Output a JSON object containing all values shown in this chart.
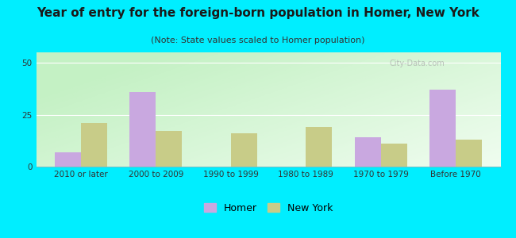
{
  "title": "Year of entry for the foreign-born population in Homer, New York",
  "subtitle": "(Note: State values scaled to Homer population)",
  "categories": [
    "2010 or later",
    "2000 to 2009",
    "1990 to 1999",
    "1980 to 1989",
    "1970 to 1979",
    "Before 1970"
  ],
  "homer_values": [
    7,
    36,
    0,
    0,
    14,
    37
  ],
  "ny_values": [
    21,
    17,
    16,
    19,
    11,
    13
  ],
  "homer_color": "#c9a8e0",
  "ny_color": "#c8cc88",
  "background_outer": "#00eeff",
  "ylim": [
    0,
    55
  ],
  "yticks": [
    0,
    25,
    50
  ],
  "bar_width": 0.35,
  "title_fontsize": 11,
  "subtitle_fontsize": 8,
  "tick_fontsize": 7.5,
  "legend_fontsize": 9,
  "watermark": "City-Data.com"
}
